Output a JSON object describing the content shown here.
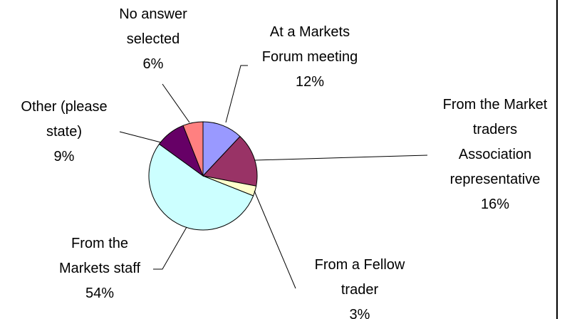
{
  "chart_data": {
    "type": "pie",
    "categories": [
      "At a Markets Forum meeting",
      "From the Market traders Association representative",
      "From a Fellow trader",
      "From the Markets staff",
      "Other (please state)",
      "No answer selected"
    ],
    "values": [
      12,
      16,
      3,
      54,
      9,
      6
    ],
    "value_labels": [
      "12%",
      "16%",
      "3%",
      "54%",
      "9%",
      "6%"
    ],
    "colors": [
      "#9999ff",
      "#993366",
      "#ffffcc",
      "#ccffff",
      "#660066",
      "#ff8080"
    ]
  }
}
